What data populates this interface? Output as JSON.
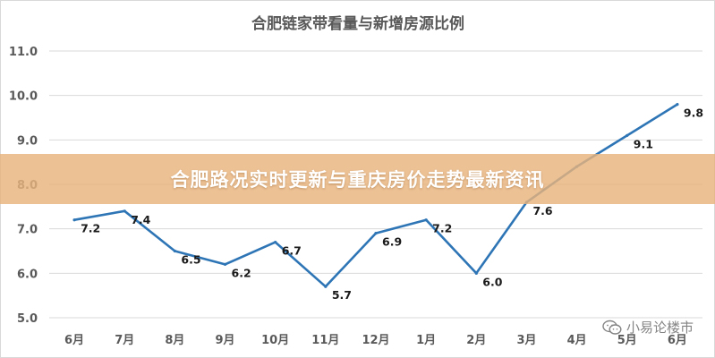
{
  "banner": {
    "text": "合肥路况实时更新与重庆房价走势最新资讯"
  },
  "watermark": {
    "text": "小易论楼市",
    "icon": "wechat-icon"
  },
  "colors": {
    "line": "#2e75b6",
    "grid": "#d9d9d9",
    "banner": "#e8b37c",
    "text": "#595959"
  },
  "chart_data": {
    "type": "line",
    "title": "合肥链家带看量与新增房源比例",
    "categories": [
      "6月",
      "7月",
      "8月",
      "9月",
      "10月",
      "11月",
      "12月",
      "1月",
      "2月",
      "3月",
      "4月",
      "5月",
      "6月"
    ],
    "series": [
      {
        "values": [
          7.2,
          7.4,
          6.5,
          6.2,
          6.7,
          5.7,
          6.9,
          7.2,
          6.0,
          7.6,
          8.4,
          9.1,
          9.8
        ]
      }
    ],
    "data_labels": [
      "7.2",
      "7.4",
      "6.5",
      "6.2",
      "6.7",
      "5.7",
      "6.9",
      "7.2",
      "6.0",
      "7.6",
      "",
      "9.1",
      "9.8"
    ],
    "ylim": [
      5.0,
      11.0
    ],
    "yticks": [
      "5.0",
      "6.0",
      "7.0",
      "8.0",
      "9.0",
      "10.0",
      "11.0"
    ],
    "grid": true,
    "legend": "none"
  }
}
